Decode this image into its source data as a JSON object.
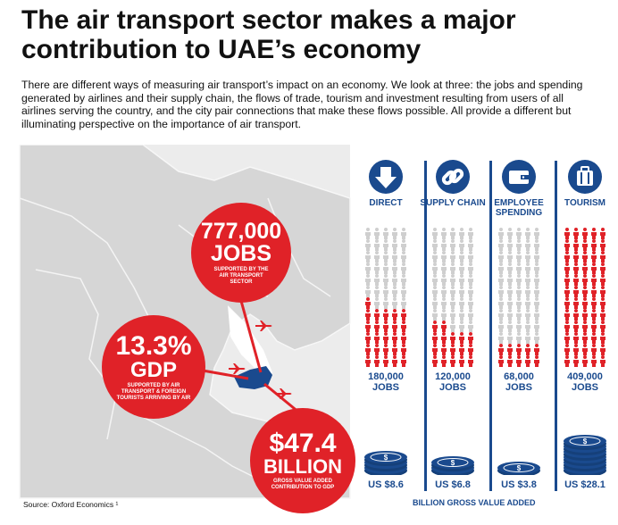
{
  "title": "The air transport sector makes a major contribution to UAE’s economy",
  "intro": "There are different ways of measuring air transport’s impact on an economy. We look at three: the jobs and spending generated by airlines and their supply chain, the flows of trade, tourism and investment resulting from users of all airlines serving the country, and the city pair connections that make these flows possible. All provide a different but illuminating perspective on the importance of air transport.",
  "source": "Source: Oxford Economics ¹",
  "bubbles": {
    "jobs": {
      "value": "777,000",
      "unit": "JOBS",
      "caption": "SUPPORTED BY THE AIR TRANSPORT SECTOR"
    },
    "gdp": {
      "value": "13.3%",
      "unit": "GDP",
      "caption": "SUPPORTED BY AIR TRANSPORT & FOREIGN TOURISTS ARRIVING BY AIR"
    },
    "gva": {
      "value": "$47.4",
      "unit": "BILLION",
      "caption": "GROSS VALUE ADDED CONTRIBUTION TO GDP"
    }
  },
  "columns": [
    {
      "label": "DIRECT",
      "jobs": "180,000",
      "jobs_unit": "JOBS",
      "money": "US $8.6",
      "red_fraction": 0.44,
      "icon": "down-arrow-icon"
    },
    {
      "label": "SUPPLY CHAIN",
      "jobs": "120,000",
      "jobs_unit": "JOBS",
      "money": "US $6.8",
      "red_fraction": 0.29,
      "icon": "chain-link-icon"
    },
    {
      "label": "EMPLOYEE SPENDING",
      "jobs": "68,000",
      "jobs_unit": "JOBS",
      "money": "US $3.8",
      "red_fraction": 0.17,
      "icon": "wallet-icon"
    },
    {
      "label": "TOURISM",
      "jobs": "409,000",
      "jobs_unit": "JOBS",
      "money": "US $28.1",
      "red_fraction": 1.0,
      "icon": "suitcase-icon"
    }
  ],
  "footer": "BILLION GROSS VALUE ADDED",
  "colors": {
    "red": "#e02228",
    "blue": "#1a4a8e",
    "grey": "#cfcfcf",
    "map": "#d9d9d9"
  }
}
